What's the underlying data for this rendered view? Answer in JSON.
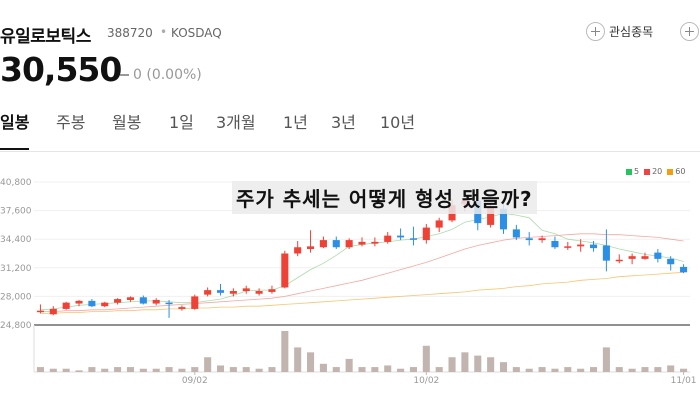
{
  "header": {
    "name": "유일로보틱스",
    "code": "388720",
    "separator": "•",
    "market": "KOSDAQ",
    "favorite_label": "관심종목"
  },
  "quote": {
    "price": "30,550",
    "change": "0 (0.00%)"
  },
  "tabs": [
    {
      "label": "일봉",
      "active": true
    },
    {
      "label": "주봉",
      "active": false
    },
    {
      "label": "월봉",
      "active": false
    },
    {
      "label": "1일",
      "active": false
    },
    {
      "label": "3개월",
      "active": false
    },
    {
      "label": "1년",
      "active": false
    },
    {
      "label": "3년",
      "active": false
    },
    {
      "label": "10년",
      "active": false
    }
  ],
  "overlay_title": "주가 추세는 어떻게 형성 됐을까?",
  "legend": [
    {
      "label": "5",
      "color": "#22c55e"
    },
    {
      "label": "20",
      "color": "#ef4444"
    },
    {
      "label": "60",
      "color": "#f59e0b"
    }
  ],
  "colors": {
    "up": "#ef4135",
    "down": "#2b8fe5",
    "volume": "#c2b5b0"
  },
  "chart_data": {
    "type": "candlestick",
    "y_ticks": [
      "40,800",
      "37,600",
      "34,400",
      "31,200",
      "28,000",
      "24,800"
    ],
    "ylim": [
      24800,
      40800
    ],
    "x_ticks": [
      "09/02",
      "10/02",
      "11/01"
    ],
    "x_tick_index": [
      12,
      30,
      50
    ],
    "candles": [
      [
        26400,
        27100,
        26100,
        26400
      ],
      [
        26000,
        26900,
        25900,
        26600
      ],
      [
        26600,
        27400,
        26500,
        27300
      ],
      [
        27200,
        27600,
        26900,
        27500
      ],
      [
        27500,
        27700,
        26800,
        26900
      ],
      [
        26900,
        27400,
        26800,
        27300
      ],
      [
        27300,
        27800,
        27100,
        27700
      ],
      [
        27600,
        28000,
        27400,
        27900
      ],
      [
        27900,
        28100,
        27100,
        27200
      ],
      [
        27200,
        27800,
        27000,
        27600
      ],
      [
        27300,
        27600,
        25600,
        27200
      ],
      [
        26600,
        27000,
        26400,
        26800
      ],
      [
        26600,
        28200,
        26500,
        28000
      ],
      [
        28200,
        29000,
        28000,
        28700
      ],
      [
        28700,
        29400,
        28100,
        28400
      ],
      [
        28300,
        28900,
        28000,
        28600
      ],
      [
        28600,
        29200,
        28300,
        28900
      ],
      [
        28300,
        28900,
        28100,
        28600
      ],
      [
        28500,
        29200,
        28300,
        28800
      ],
      [
        29000,
        33100,
        28900,
        32800
      ],
      [
        32800,
        34200,
        32500,
        33500
      ],
      [
        33300,
        35400,
        32900,
        33600
      ],
      [
        33500,
        34700,
        33400,
        34300
      ],
      [
        34300,
        34700,
        33300,
        33500
      ],
      [
        33500,
        34500,
        33300,
        34300
      ],
      [
        33800,
        34600,
        33600,
        34100
      ],
      [
        33900,
        34600,
        33600,
        34100
      ],
      [
        34100,
        35200,
        33900,
        34800
      ],
      [
        34800,
        35600,
        34300,
        34600
      ],
      [
        34500,
        35800,
        33700,
        34400
      ],
      [
        34300,
        36100,
        33900,
        35700
      ],
      [
        35700,
        36800,
        35200,
        36500
      ],
      [
        36500,
        38900,
        36300,
        38200
      ],
      [
        38300,
        39500,
        37500,
        38700
      ],
      [
        38700,
        39800,
        35400,
        36200
      ],
      [
        36000,
        38300,
        35700,
        37900
      ],
      [
        37800,
        38400,
        35000,
        35500
      ],
      [
        35500,
        36000,
        34300,
        34600
      ],
      [
        34500,
        35200,
        33700,
        34300
      ],
      [
        34300,
        34800,
        34000,
        34500
      ],
      [
        34200,
        34700,
        33300,
        33500
      ],
      [
        33500,
        34100,
        33200,
        33600
      ],
      [
        33600,
        34400,
        33000,
        33800
      ],
      [
        33800,
        34200,
        33000,
        33400
      ],
      [
        33700,
        35500,
        30800,
        32000
      ],
      [
        32100,
        32700,
        31700,
        32100
      ],
      [
        32200,
        32800,
        31600,
        32500
      ],
      [
        32200,
        32900,
        32100,
        32500
      ],
      [
        32900,
        33300,
        31800,
        32200
      ],
      [
        32200,
        32500,
        30900,
        31600
      ],
      [
        31300,
        31600,
        30600,
        30700
      ]
    ],
    "volume": [
      3,
      2,
      2,
      1,
      3,
      2,
      3,
      3,
      2,
      2,
      3,
      2,
      3,
      9,
      4,
      3,
      3,
      2,
      3,
      25,
      15,
      12,
      5,
      3,
      8,
      3,
      3,
      4,
      2,
      3,
      16,
      3,
      9,
      12,
      10,
      9,
      6,
      3,
      2,
      3,
      2,
      3,
      2,
      3,
      15,
      3,
      2,
      3,
      3,
      4,
      2
    ],
    "ma5": [
      26500,
      26600,
      26800,
      27000,
      27100,
      27200,
      27300,
      27400,
      27500,
      27500,
      27400,
      27300,
      27300,
      27500,
      27700,
      28100,
      28600,
      28700,
      28700,
      29200,
      30100,
      31000,
      31700,
      32600,
      33600,
      33800,
      34000,
      34100,
      34300,
      34400,
      34700,
      35000,
      35500,
      36300,
      36600,
      36900,
      37300,
      37100,
      36800,
      35400,
      35000,
      34400,
      34200,
      34000,
      33700,
      33300,
      33000,
      32700,
      32500,
      32300,
      31900
    ],
    "ma20": [
      26300,
      26300,
      26400,
      26400,
      26500,
      26500,
      26600,
      26700,
      26800,
      26900,
      27000,
      27100,
      27200,
      27300,
      27400,
      27500,
      27600,
      27700,
      27800,
      28000,
      28300,
      28600,
      28900,
      29200,
      29500,
      29800,
      30200,
      30600,
      31000,
      31400,
      31800,
      32300,
      32800,
      33300,
      33700,
      34000,
      34300,
      34500,
      34600,
      34700,
      34800,
      34900,
      35000,
      35000,
      34900,
      34900,
      34800,
      34700,
      34600,
      34400,
      34200
    ],
    "ma60": [
      26100,
      26100,
      26200,
      26200,
      26300,
      26300,
      26400,
      26400,
      26500,
      26500,
      26600,
      26600,
      26700,
      26700,
      26800,
      26800,
      26900,
      26900,
      27000,
      27100,
      27200,
      27300,
      27400,
      27500,
      27600,
      27700,
      27800,
      27900,
      28000,
      28100,
      28200,
      28300,
      28400,
      28500,
      28700,
      28800,
      28900,
      29100,
      29200,
      29400,
      29500,
      29600,
      29800,
      29900,
      30000,
      30200,
      30300,
      30400,
      30500,
      30600,
      30700
    ]
  }
}
